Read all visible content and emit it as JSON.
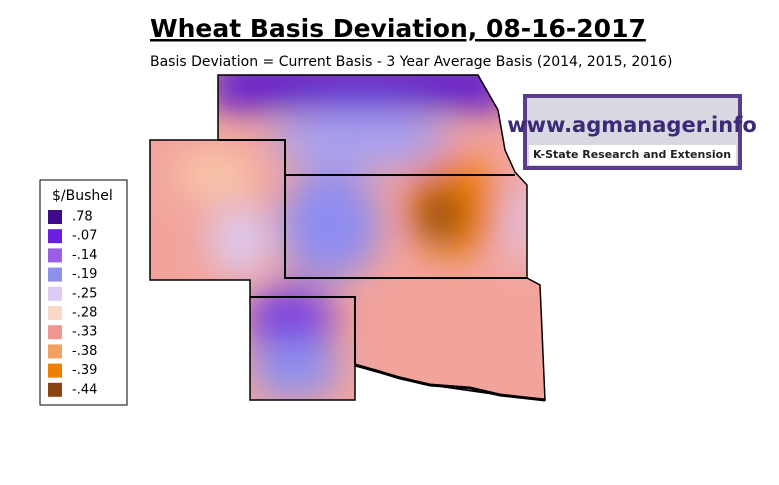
{
  "header": {
    "title": "Wheat Basis Deviation, 08-16-2017",
    "subtitle": "Basis Deviation = Current Basis - 3 Year Average Basis (2014, 2015, 2016)"
  },
  "legend": {
    "title": "$/Bushel",
    "items": [
      {
        "label": ".78",
        "color": "#3d0a8c"
      },
      {
        "label": "-.07",
        "color": "#6a1ee0"
      },
      {
        "label": "-.14",
        "color": "#9a5ee6"
      },
      {
        "label": "-.19",
        "color": "#8e90ee"
      },
      {
        "label": "-.25",
        "color": "#dccaf2"
      },
      {
        "label": "-.28",
        "color": "#f8d8c6"
      },
      {
        "label": "-.33",
        "color": "#f0968e"
      },
      {
        "label": "-.38",
        "color": "#f2a060"
      },
      {
        "label": "-.39",
        "color": "#f07f00"
      },
      {
        "label": "-.44",
        "color": "#8a4412"
      }
    ]
  },
  "logo": {
    "url": "www.agmanager.info",
    "org": "K-State Research and Extension"
  }
}
